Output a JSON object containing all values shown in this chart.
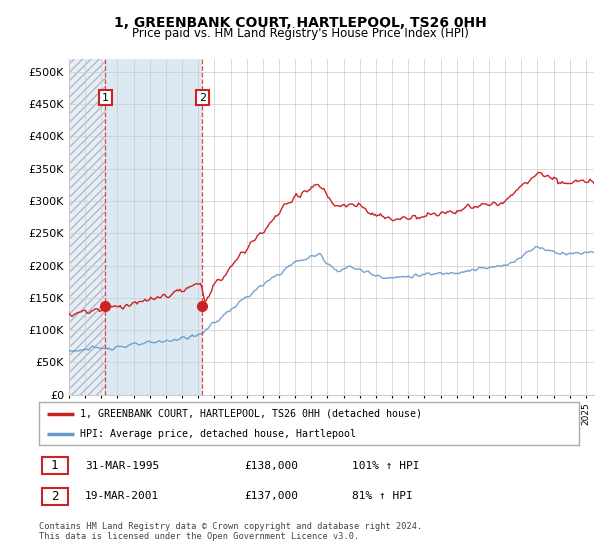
{
  "title": "1, GREENBANK COURT, HARTLEPOOL, TS26 0HH",
  "subtitle": "Price paid vs. HM Land Registry's House Price Index (HPI)",
  "legend_line1": "1, GREENBANK COURT, HARTLEPOOL, TS26 0HH (detached house)",
  "legend_line2": "HPI: Average price, detached house, Hartlepool",
  "footnote": "Contains HM Land Registry data © Crown copyright and database right 2024.\nThis data is licensed under the Open Government Licence v3.0.",
  "transaction1_label": "1",
  "transaction1_date": "31-MAR-1995",
  "transaction1_price": "£138,000",
  "transaction1_hpi": "101% ↑ HPI",
  "transaction2_label": "2",
  "transaction2_date": "19-MAR-2001",
  "transaction2_price": "£137,000",
  "transaction2_hpi": "81% ↑ HPI",
  "red_line_color": "#cc2222",
  "blue_line_color": "#6699cc",
  "marker1_x": 1995.25,
  "marker1_y": 138000,
  "marker2_x": 2001.25,
  "marker2_y": 137000,
  "dashed_line1_x": 1995.25,
  "dashed_line2_x": 2001.25,
  "ylim_min": 0,
  "ylim_max": 520000,
  "xlim_min": 1993.0,
  "xlim_max": 2025.5,
  "yticks": [
    0,
    50000,
    100000,
    150000,
    200000,
    250000,
    300000,
    350000,
    400000,
    450000,
    500000
  ],
  "ytick_labels": [
    "£0",
    "£50K",
    "£100K",
    "£150K",
    "£200K",
    "£250K",
    "£300K",
    "£350K",
    "£400K",
    "£450K",
    "£500K"
  ]
}
